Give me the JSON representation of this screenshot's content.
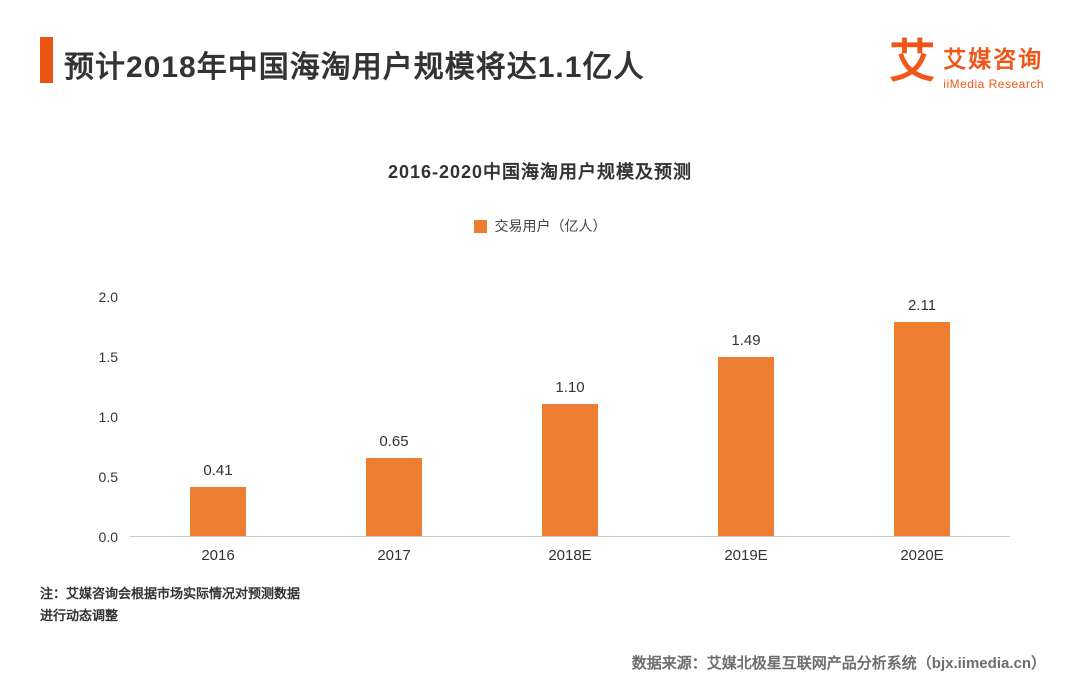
{
  "header": {
    "title": "预计2018年中国海淘用户规模将达1.1亿人",
    "brand": {
      "logo_char": "艾",
      "name": "艾媒咨询",
      "subtitle": "iiMedia Research"
    }
  },
  "chart_data": {
    "type": "bar",
    "title": "2016-2020中国海淘用户规模及预测",
    "legend": "交易用户（亿人）",
    "categories": [
      "2016",
      "2017",
      "2018E",
      "2019E",
      "2020E"
    ],
    "values": [
      0.41,
      0.65,
      1.1,
      1.49,
      2.11
    ],
    "value_labels": [
      "0.41",
      "0.65",
      "1.10",
      "1.49",
      "2.11"
    ],
    "yticks": [
      "0.0",
      "0.5",
      "1.0",
      "1.5",
      "2.0"
    ],
    "ylim": [
      0,
      2.0
    ],
    "grid": false,
    "legend_position": "top-center",
    "bar_color": "#ED7D31"
  },
  "footer": {
    "note_line1": "注：艾媒咨询会根据市场实际情况对预测数据",
    "note_line2": "进行动态调整",
    "source": "数据来源：艾媒北极星互联网产品分析系统（bjx.iimedia.cn）"
  },
  "colors": {
    "accent": "#EA5514",
    "bar": "#ED7D31",
    "title_text": "#333333",
    "source_text": "#6E6E6E"
  }
}
